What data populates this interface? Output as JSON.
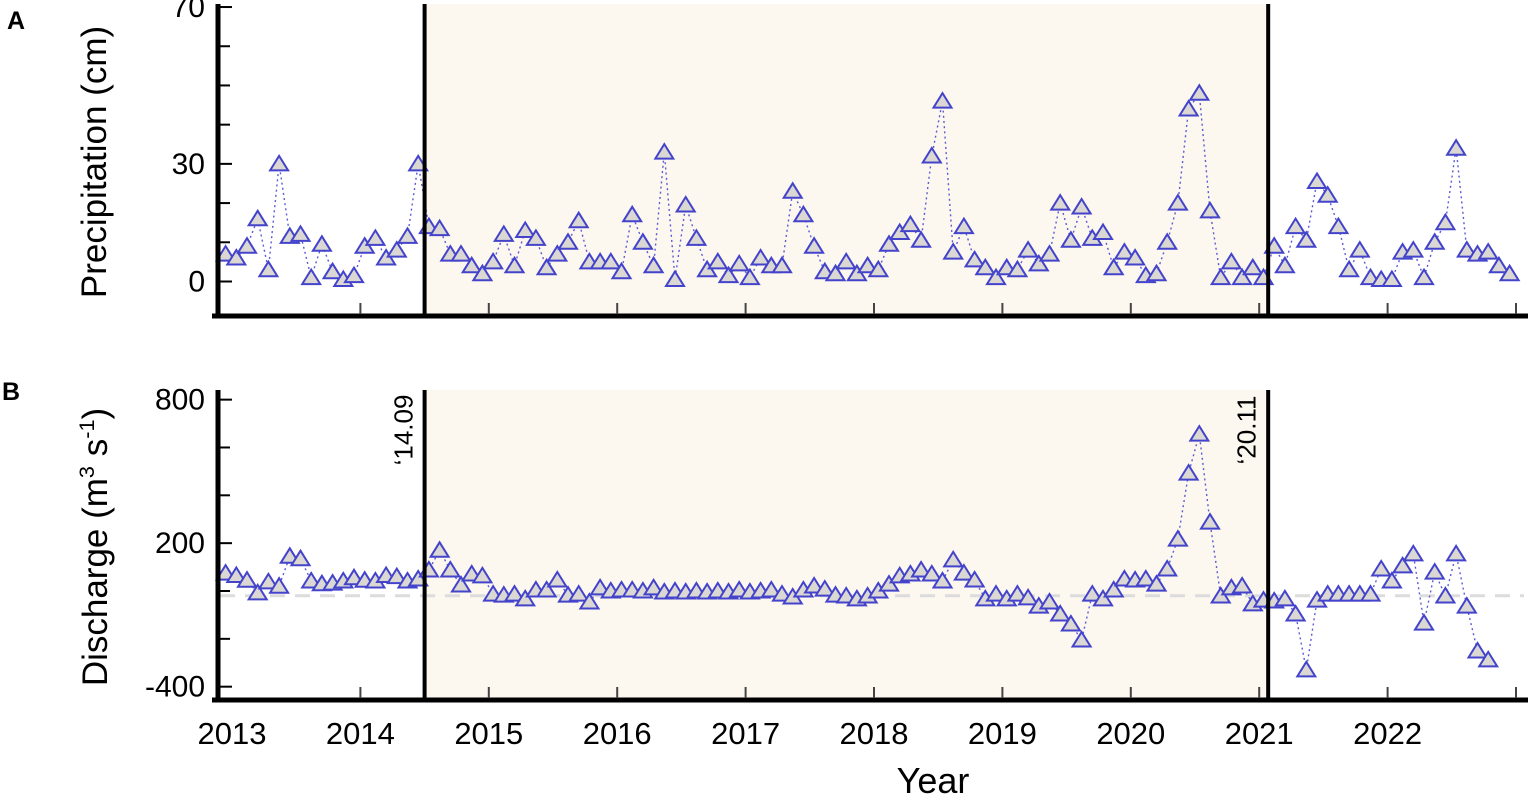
{
  "figure": {
    "panel_a_letter": "A",
    "panel_b_letter": "B",
    "x_axis_title": "Year",
    "panel_a_y_title": "Precipitation (cm)",
    "panel_b_y_title_parts": [
      {
        "text": "Discharge (m"
      },
      {
        "text": "3",
        "sup": true
      },
      {
        "text": " s"
      },
      {
        "text": "-1",
        "sup": true
      },
      {
        "text": ")"
      }
    ]
  },
  "colors": {
    "marker_edge": "#4343cb",
    "marker_fill": "#dbd8d3",
    "series_line": "#5b5bd6",
    "shade_fill": "#fcf7ef",
    "baseline_dash": "#dcdcdc",
    "axis": "#000000"
  },
  "event_lines": [
    {
      "x_year": 2014.5,
      "label": "‘14.09"
    },
    {
      "x_year": 2021.07,
      "label": "‘20.11"
    }
  ],
  "shaded_span": {
    "from_year": 2014.5,
    "to_year": 2021.07
  },
  "chart_data": [
    {
      "panel": "A",
      "type": "line",
      "marker": "triangle-up",
      "ylabel": "Precipitation (cm)",
      "xlabel": "Year",
      "legend": "none",
      "grid": false,
      "x_start_year": 2012.95,
      "x_step_years": 0.083333,
      "xlim": [
        2012.85,
        2023.1
      ],
      "ylim": [
        -9,
        71
      ],
      "yticks_labeled": [
        {
          "v": 0,
          "label": "0"
        },
        {
          "v": 30,
          "label": "30"
        },
        {
          "v": 70,
          "label": "70"
        }
      ],
      "yticks_minor": [
        10,
        20,
        40,
        50,
        60
      ],
      "xticks_labeled": [
        {
          "v": 2013,
          "label": "2013"
        },
        {
          "v": 2014,
          "label": "2014"
        },
        {
          "v": 2015,
          "label": "2015"
        },
        {
          "v": 2016,
          "label": "2016"
        },
        {
          "v": 2017,
          "label": "2017"
        },
        {
          "v": 2018,
          "label": "2018"
        },
        {
          "v": 2019,
          "label": "2019"
        },
        {
          "v": 2020,
          "label": "2020"
        },
        {
          "v": 2021,
          "label": "2021"
        },
        {
          "v": 2022,
          "label": "2022"
        }
      ],
      "xtick_marks": [
        2014,
        2015,
        2016,
        2017,
        2018,
        2019,
        2020,
        2021,
        2022,
        2023
      ],
      "values": [
        7,
        6,
        9,
        16,
        3,
        30,
        11.5,
        12,
        1,
        9.5,
        2.5,
        0.5,
        1.5,
        9,
        11,
        6,
        8,
        11.5,
        30,
        14,
        13.5,
        7,
        7,
        4,
        2,
        5,
        12,
        4,
        13,
        11,
        3.5,
        7,
        10,
        15.5,
        5,
        5,
        5,
        2.5,
        17,
        10,
        4,
        33,
        0.5,
        19.5,
        11,
        3,
        5,
        1.5,
        4.5,
        1,
        6,
        4,
        4,
        23,
        17,
        9,
        2.5,
        2,
        5,
        2,
        4,
        3,
        9.5,
        12.5,
        14.5,
        10.5,
        32,
        46,
        7.5,
        14,
        5.5,
        3.5,
        1,
        3.5,
        3,
        8,
        4.5,
        7,
        20,
        10.5,
        19,
        11,
        12.5,
        3.5,
        7.5,
        6,
        1.5,
        2,
        10,
        20,
        44,
        48,
        18,
        1,
        5,
        1,
        3.5,
        1,
        9,
        4,
        14,
        10.5,
        25.5,
        22,
        14,
        3,
        8,
        1,
        0.5,
        0.5,
        7.5,
        8,
        1,
        10,
        15,
        34,
        8,
        7,
        7.5,
        4,
        2
      ]
    },
    {
      "panel": "B",
      "type": "line",
      "marker": "triangle-up",
      "ylabel": "Discharge (m3 s-1)",
      "xlabel": "Year",
      "legend": "none",
      "grid": false,
      "x_start_year": 2012.95,
      "x_step_years": 0.083333,
      "xlim": [
        2012.85,
        2023.1
      ],
      "ylim": [
        -460,
        840
      ],
      "yticks_labeled": [
        {
          "v": 800,
          "label": "800"
        },
        {
          "v": 200,
          "label": "200"
        },
        {
          "v": -400,
          "label": "-400"
        }
      ],
      "yticks_minor": [
        600,
        400,
        0,
        -200
      ],
      "xticks_labeled": [
        {
          "v": 2013,
          "label": "2013"
        },
        {
          "v": 2014,
          "label": "2014"
        },
        {
          "v": 2015,
          "label": "2015"
        },
        {
          "v": 2016,
          "label": "2016"
        },
        {
          "v": 2017,
          "label": "2017"
        },
        {
          "v": 2018,
          "label": "2018"
        },
        {
          "v": 2019,
          "label": "2019"
        },
        {
          "v": 2020,
          "label": "2020"
        },
        {
          "v": 2021,
          "label": "2021"
        },
        {
          "v": 2022,
          "label": "2022"
        }
      ],
      "xtick_marks": [
        2014,
        2015,
        2016,
        2017,
        2018,
        2019,
        2020,
        2021,
        2022,
        2023
      ],
      "reference_line_value": -20,
      "values": [
        75,
        65,
        45,
        -8,
        38,
        20,
        145,
        135,
        42,
        30,
        33,
        42,
        55,
        45,
        42,
        65,
        60,
        42,
        50,
        88,
        170,
        88,
        25,
        71,
        63,
        -13,
        -17,
        -13,
        -33,
        4,
        4,
        46,
        -17,
        -13,
        -46,
        13,
        0,
        4,
        4,
        0,
        13,
        -4,
        0,
        -4,
        0,
        -4,
        0,
        -4,
        4,
        -4,
        0,
        4,
        -13,
        -25,
        4,
        21,
        8,
        -17,
        -21,
        -33,
        -21,
        0,
        29,
        63,
        71,
        88,
        71,
        42,
        130,
        75,
        46,
        -33,
        -13,
        -33,
        -13,
        -29,
        -63,
        -46,
        -96,
        -138,
        -205,
        -13,
        -33,
        4,
        50,
        46,
        50,
        29,
        92,
        217,
        493,
        656,
        288,
        -21,
        13,
        21,
        -54,
        -38,
        -42,
        -33,
        -96,
        -330,
        -38,
        -13,
        -13,
        -13,
        -13,
        -13,
        92,
        42,
        105,
        155,
        -134,
        79,
        -21,
        155,
        -63,
        -251,
        -288
      ]
    }
  ]
}
